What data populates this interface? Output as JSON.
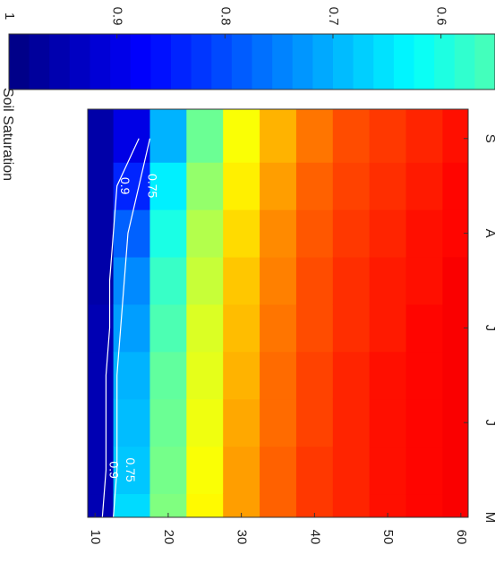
{
  "chart_data": {
    "type": "contour",
    "title": "Soil Saturation",
    "times": [
      5,
      5.5,
      6,
      6.5,
      7,
      7.5,
      8,
      8.5,
      9
    ],
    "depths": [
      10,
      15,
      20,
      25,
      30,
      35,
      40,
      45,
      50,
      55,
      60
    ],
    "values": [
      [
        0.95,
        0.95,
        0.95,
        0.95,
        0.95,
        0.96,
        0.96,
        0.96,
        0.96
      ],
      [
        0.66,
        0.68,
        0.69,
        0.7,
        0.72,
        0.74,
        0.78,
        0.84,
        0.9
      ],
      [
        0.5,
        0.51,
        0.52,
        0.53,
        0.55,
        0.57,
        0.6,
        0.64,
        0.7
      ],
      [
        0.37,
        0.38,
        0.39,
        0.4,
        0.41,
        0.43,
        0.45,
        0.48,
        0.52
      ],
      [
        0.28,
        0.28,
        0.29,
        0.3,
        0.31,
        0.32,
        0.34,
        0.36,
        0.38
      ],
      [
        0.22,
        0.22,
        0.23,
        0.23,
        0.24,
        0.25,
        0.26,
        0.28,
        0.3
      ],
      [
        0.18,
        0.18,
        0.19,
        0.19,
        0.2,
        0.2,
        0.21,
        0.22,
        0.24
      ],
      [
        0.16,
        0.16,
        0.16,
        0.16,
        0.17,
        0.17,
        0.18,
        0.19,
        0.2
      ],
      [
        0.14,
        0.14,
        0.14,
        0.14,
        0.15,
        0.15,
        0.16,
        0.17,
        0.18
      ],
      [
        0.13,
        0.13,
        0.13,
        0.13,
        0.13,
        0.14,
        0.14,
        0.15,
        0.16
      ],
      [
        0.12,
        0.12,
        0.12,
        0.12,
        0.12,
        0.12,
        0.13,
        0.13,
        0.14
      ]
    ],
    "contours": [
      {
        "level": 0.9,
        "depths": [
          11,
          11.5,
          11.5,
          11.5,
          12,
          12,
          12.5,
          13,
          16
        ]
      },
      {
        "level": 0.75,
        "depths": [
          12.5,
          13,
          13,
          13,
          13.5,
          14,
          14.5,
          16,
          17.5
        ]
      }
    ],
    "xlim": [
      5,
      9.31
    ],
    "xticks": [
      {
        "value": 5,
        "label": "M"
      },
      {
        "value": 6,
        "label": "J"
      },
      {
        "value": 7,
        "label": "J"
      },
      {
        "value": 8,
        "label": "A"
      },
      {
        "value": 9,
        "label": "S"
      }
    ],
    "ylim": [
      9,
      61
    ],
    "yticks": [
      10,
      20,
      30,
      40,
      50,
      60
    ],
    "colorbar_lim": [
      1,
      0.55
    ],
    "colorbar_ticks": [
      1,
      0.9,
      0.8,
      0.7,
      0.6
    ]
  }
}
